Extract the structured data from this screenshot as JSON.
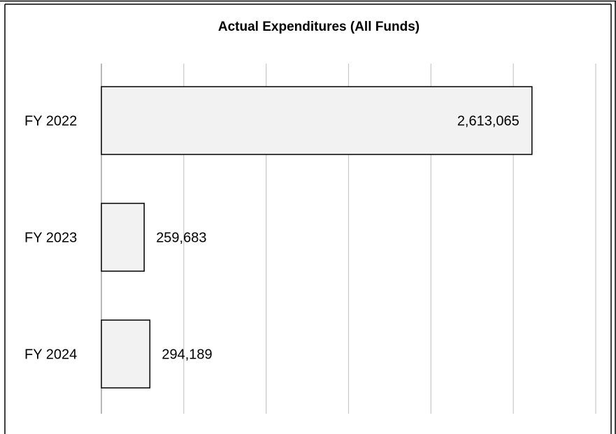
{
  "chart_data": {
    "type": "bar",
    "orientation": "horizontal",
    "title": "Actual Expenditures (All Funds)",
    "xlabel": "",
    "ylabel": "",
    "categories": [
      "FY 2022",
      "FY 2023",
      "FY 2024"
    ],
    "values": [
      2613065,
      259683,
      294189
    ],
    "value_labels": [
      "2,613,065",
      "259,683",
      "294,189"
    ],
    "xlim": [
      0,
      3000000
    ],
    "grid": true,
    "legend": "none",
    "colors": {
      "bar_fill": "#f2f2f2",
      "bar_stroke": "#000000",
      "grid": "#c8c8c8",
      "axis": "#888888",
      "frame": "#000000"
    }
  }
}
